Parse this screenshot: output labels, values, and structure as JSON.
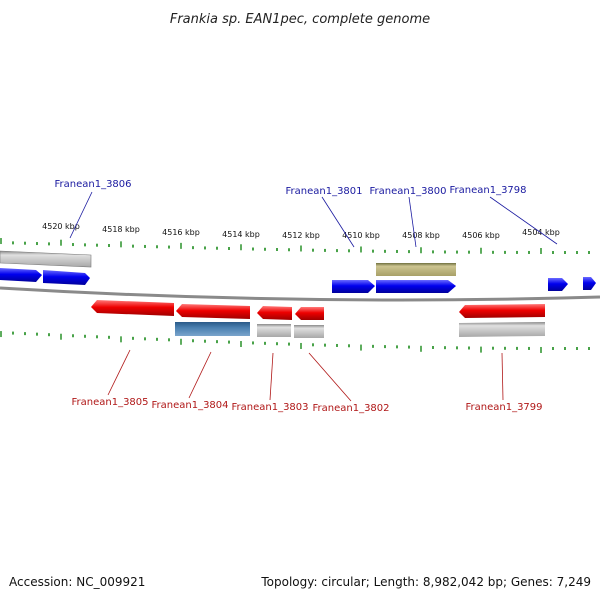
{
  "title": "Frankia sp. EAN1pec, complete genome",
  "footer": {
    "accession": "Accession: NC_009921",
    "summary": "Topology: circular; Length: 8,982,042 bp; Genes: 7,249"
  },
  "colors": {
    "forward_gene": "#0000ee",
    "reverse_gene": "#ee0000",
    "pseudo_gene": "#b8b8b8",
    "rna_gene": "#b0a860",
    "misc_feature": "#4a80b0",
    "forward_label": "#1a1aa0",
    "reverse_label": "#b01818",
    "tick": "#1a8a1a",
    "backbone": "#8a8a8a"
  },
  "scale": {
    "labels": [
      "4520 kbp",
      "4518 kbp",
      "4516 kbp",
      "4514 kbp",
      "4512 kbp",
      "4510 kbp",
      "4508 kbp",
      "4506 kbp",
      "4504 kbp"
    ]
  },
  "labels": {
    "forward": [
      "Franean1_3806",
      "Franean1_3801",
      "Franean1_3800",
      "Franean1_3798"
    ],
    "reverse": [
      "Franean1_3805",
      "Franean1_3804",
      "Franean1_3803",
      "Franean1_3802",
      "Franean1_3799"
    ]
  }
}
